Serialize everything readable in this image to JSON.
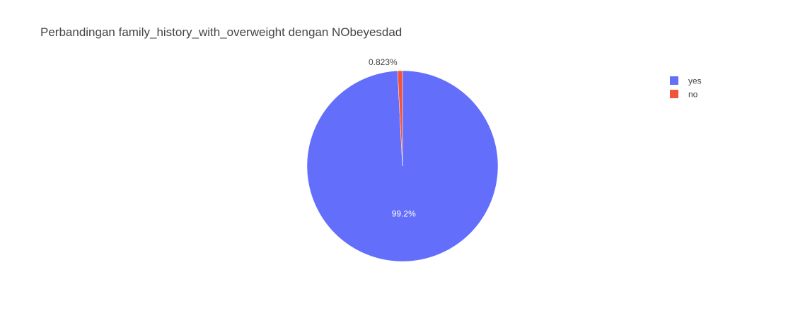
{
  "chart_data": {
    "type": "pie",
    "title": "Perbandingan family_history_with_overweight dengan NObeyesdad",
    "categories": [
      "yes",
      "no"
    ],
    "values": [
      99.177,
      0.823
    ],
    "labels_shown": [
      "99.2%",
      "0.823%"
    ],
    "colors": [
      "#636efa",
      "#ef553b"
    ],
    "legend": {
      "placement": "top-right",
      "entries": [
        "yes",
        "no"
      ]
    }
  }
}
